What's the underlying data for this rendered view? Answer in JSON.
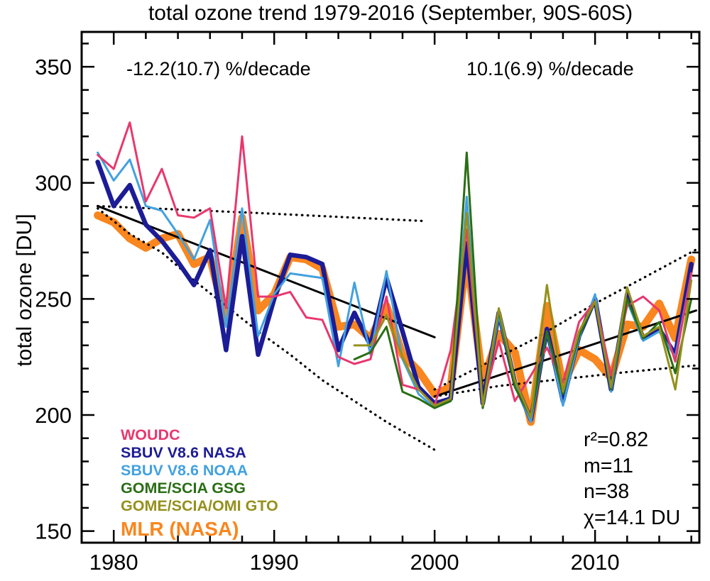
{
  "figure": {
    "title": "total ozone trend 1979-2016 (September, 90S-60S)",
    "y_axis_label": "total ozone [DU]"
  },
  "annotations": {
    "trend_left": "-12.2(10.7) %/decade",
    "trend_right": "10.1(6.9) %/decade"
  },
  "stats": [
    "r²=0.82",
    "m=11",
    "n=38",
    "χ=14.1 DU"
  ],
  "legend": [
    {
      "label": "WOUDC",
      "color": "#E8386E",
      "size": "small"
    },
    {
      "label": "SBUV V8.6 NASA",
      "color": "#1C1C96",
      "size": "small"
    },
    {
      "label": "SBUV V8.6 NOAA",
      "color": "#42A1E0",
      "size": "small"
    },
    {
      "label": "GOME/SCIA GSG",
      "color": "#2A6E14",
      "size": "small"
    },
    {
      "label": "GOME/SCIA/OMI GTO",
      "color": "#95901C",
      "size": "small"
    },
    {
      "label": "MLR (NASA)",
      "color": "#F9861E",
      "size": "large"
    }
  ],
  "chart_data": {
    "type": "line",
    "title": "total ozone trend 1979-2016 (September, 90S-60S)",
    "xlabel": "",
    "ylabel": "total ozone [DU]",
    "xlim": [
      1978,
      2016.5
    ],
    "ylim": [
      145,
      365
    ],
    "grid": false,
    "legend_position": "lower-left",
    "x_major_ticks": [
      1980,
      1990,
      2000,
      2010
    ],
    "x_minor_tick_step": 2,
    "y_major_ticks": [
      150,
      200,
      250,
      300,
      350
    ],
    "y_minor_tick_step": 10,
    "series": [
      {
        "name": "MLR (NASA)",
        "color": "#F9861E",
        "width": 11,
        "start_year": 1979,
        "values": [
          286,
          283,
          276,
          272,
          276,
          278,
          265,
          268,
          240,
          285,
          245,
          252,
          268,
          267,
          263,
          238,
          239,
          233,
          247,
          226,
          219,
          209,
          212,
          269,
          214,
          235,
          227,
          197,
          247,
          213,
          228,
          224,
          216,
          239,
          238,
          248,
          233,
          267
        ]
      },
      {
        "name": "SBUV V8.6 NASA",
        "color": "#1C1C96",
        "width": 6.5,
        "start_year": 1979,
        "values": [
          309,
          290,
          299,
          282,
          275,
          266,
          256,
          271,
          228,
          277,
          226,
          250,
          269,
          268,
          265,
          228,
          244,
          230,
          259,
          236,
          212,
          205,
          207,
          274,
          205,
          244,
          214,
          198,
          237,
          206,
          234,
          250,
          211,
          252,
          233,
          237,
          226,
          265
        ]
      },
      {
        "name": "SBUV V8.6 NOAA",
        "color": "#42A1E0",
        "width": 3,
        "start_year": 1979,
        "values": [
          313,
          301,
          310,
          290,
          288,
          278,
          267,
          284,
          238,
          289,
          234,
          252,
          261,
          260,
          259,
          221,
          257,
          226,
          262,
          224,
          209,
          203,
          206,
          294,
          203,
          243,
          213,
          197,
          236,
          204,
          233,
          252,
          210,
          249,
          232,
          236,
          225,
          261
        ]
      },
      {
        "name": "WOUDC",
        "color": "#E8386E",
        "width": 3,
        "start_year": 1979,
        "values": [
          312,
          306,
          326,
          292,
          306,
          286,
          285,
          289,
          246,
          320,
          251,
          251,
          253,
          242,
          241,
          225,
          222,
          224,
          251,
          213,
          211,
          204,
          228,
          280,
          205,
          232,
          206,
          217,
          229,
          214,
          240,
          249,
          217,
          247,
          251,
          245,
          223,
          261
        ]
      },
      {
        "name": "GOME/SCIA GSG",
        "color": "#2A6E14",
        "width": 3,
        "start_year": 1995,
        "values": [
          224,
          227,
          238,
          210,
          207,
          203,
          206,
          313,
          203,
          245,
          212,
          199,
          236,
          209,
          234,
          249,
          211,
          250,
          233,
          240,
          218,
          250
        ]
      },
      {
        "name": "GOME/SCIA/OMI GTO",
        "color": "#95901C",
        "width": 3,
        "start_year": 1995,
        "values": [
          230,
          230,
          243,
          225,
          211,
          204,
          207,
          287,
          204,
          246,
          215,
          199,
          256,
          210,
          236,
          249,
          212,
          255,
          234,
          238,
          211,
          258
        ]
      }
    ],
    "fit_lines": [
      {
        "name": "trend-1979-1999",
        "style": "solid",
        "points": [
          [
            1979,
            290
          ],
          [
            2000,
            233.5
          ]
        ]
      },
      {
        "name": "trend-2000-2016",
        "style": "solid",
        "points": [
          [
            2000,
            208
          ],
          [
            2016.3,
            245
          ]
        ]
      },
      {
        "name": "envelope-upper-1979-1999",
        "style": "dotted",
        "points": [
          [
            1979,
            290
          ],
          [
            1989,
            287
          ],
          [
            1999.5,
            283.5
          ]
        ]
      },
      {
        "name": "envelope-lower-1979-1999",
        "style": "dotted",
        "points": [
          [
            1979,
            289
          ],
          [
            1981,
            278
          ],
          [
            1983,
            270
          ],
          [
            1985,
            258
          ],
          [
            1987,
            247
          ],
          [
            1989,
            236
          ],
          [
            1991,
            226
          ],
          [
            1993,
            215
          ],
          [
            1995,
            206
          ],
          [
            1997,
            197
          ],
          [
            1999,
            189
          ],
          [
            2000,
            185
          ]
        ]
      },
      {
        "name": "envelope-upper-2000-2016",
        "style": "dotted",
        "points": [
          [
            2000,
            211
          ],
          [
            2006,
            232
          ],
          [
            2010,
            248
          ],
          [
            2013,
            259
          ],
          [
            2016.5,
            272
          ]
        ]
      },
      {
        "name": "envelope-lower-2000-2016",
        "style": "dotted",
        "points": [
          [
            2000,
            208
          ],
          [
            2004,
            212.5
          ],
          [
            2008,
            215.5
          ],
          [
            2012,
            218.5
          ],
          [
            2016.5,
            221.5
          ]
        ]
      }
    ]
  }
}
